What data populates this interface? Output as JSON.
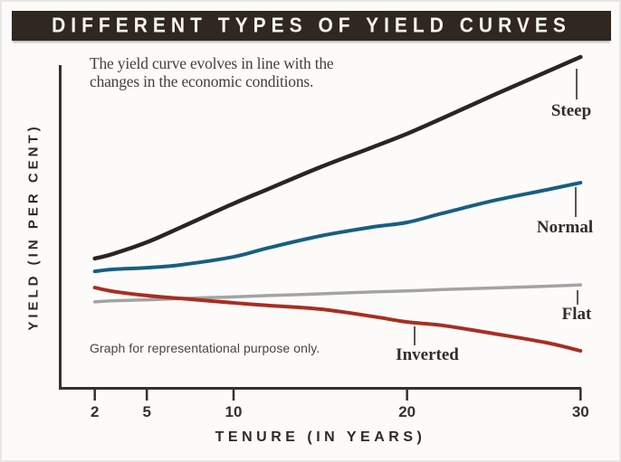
{
  "page": {
    "title": "DIFFERENT TYPES OF YIELD CURVES",
    "annotation": {
      "line1": "The yield curve evolves in line with the",
      "line2": "changes in the economic conditions."
    },
    "disclaimer": "Graph for representational purpose only.",
    "x_axis_label": "TENURE (IN YEARS)",
    "y_axis_label": "YIELD (IN PER CENT)"
  },
  "colors": {
    "title_bar_bg": "#2f2720",
    "title_text": "#f7f4ef",
    "axis": "#37312c",
    "leader_line": "#332d28",
    "steep": "#2b2522",
    "normal": "#175f82",
    "flat": "#a3a3a3",
    "inverted": "#a82e20"
  },
  "chart_data": {
    "type": "line",
    "title": "DIFFERENT TYPES OF YIELD CURVES",
    "xlabel": "TENURE (IN YEARS)",
    "ylabel": "YIELD (IN PER CENT)",
    "note": "Graph for representational purpose only.",
    "x_axis_scale": "linear",
    "x_ticks": [
      2,
      5,
      10,
      20,
      30
    ],
    "xlim": [
      2,
      30
    ],
    "ylim": [
      0,
      10.5
    ],
    "y_ticks_shown": false,
    "grid": false,
    "legend_position": "inline-labels-right",
    "x": [
      2,
      3,
      5,
      7,
      10,
      12,
      15,
      18,
      20,
      22,
      25,
      28,
      30
    ],
    "series": [
      {
        "name": "Steep",
        "color": "#2b2522",
        "values": [
          3.91,
          4.04,
          4.4,
          4.86,
          5.57,
          6.01,
          6.67,
          7.27,
          7.68,
          8.14,
          8.85,
          9.54,
          10.0
        ]
      },
      {
        "name": "Normal",
        "color": "#175f82",
        "values": [
          3.52,
          3.58,
          3.63,
          3.72,
          3.96,
          4.23,
          4.59,
          4.86,
          5.0,
          5.27,
          5.66,
          5.98,
          6.2
        ]
      },
      {
        "name": "Flat",
        "color": "#a3a3a3",
        "values": [
          2.6,
          2.63,
          2.66,
          2.7,
          2.75,
          2.79,
          2.84,
          2.9,
          2.93,
          2.97,
          3.02,
          3.07,
          3.11
        ]
      },
      {
        "name": "Inverted",
        "color": "#a82e20",
        "values": [
          3.03,
          2.92,
          2.79,
          2.7,
          2.57,
          2.49,
          2.38,
          2.16,
          1.99,
          1.89,
          1.64,
          1.37,
          1.12
        ]
      }
    ]
  }
}
